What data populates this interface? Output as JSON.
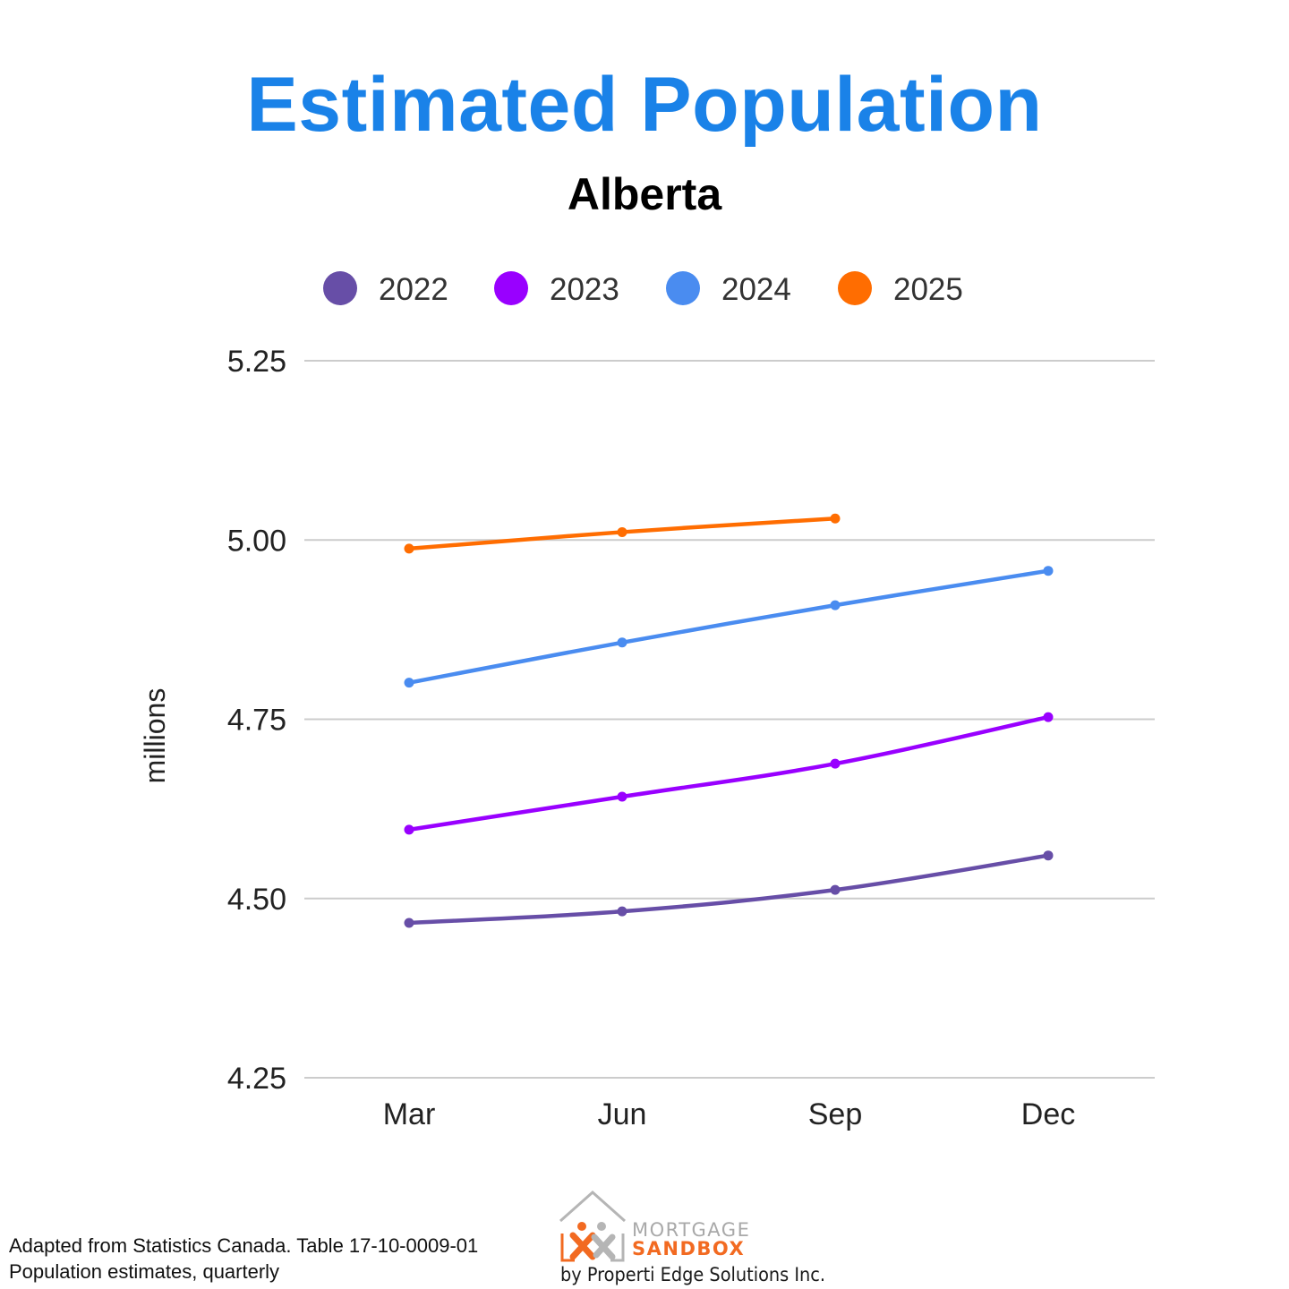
{
  "chart_data": {
    "type": "line",
    "title": "Estimated Population",
    "subtitle": "Alberta",
    "xlabel": "",
    "ylabel": "millions",
    "categories": [
      "Mar",
      "Jun",
      "Sep",
      "Dec"
    ],
    "ylim": [
      4.25,
      5.25
    ],
    "yticks": [
      "4.25",
      "4.50",
      "4.75",
      "5.00",
      "5.25"
    ],
    "grid": true,
    "legend_position": "top",
    "series": [
      {
        "name": "2022",
        "color": "#674ea7",
        "values": [
          4.466,
          4.482,
          4.512,
          4.56
        ]
      },
      {
        "name": "2023",
        "color": "#9900ff",
        "values": [
          4.596,
          4.642,
          4.688,
          4.753
        ]
      },
      {
        "name": "2024",
        "color": "#4a8cf0",
        "values": [
          4.801,
          4.857,
          4.909,
          4.957
        ]
      },
      {
        "name": "2025",
        "color": "#ff6d01",
        "values": [
          4.988,
          5.011,
          5.03,
          null
        ]
      }
    ]
  },
  "footer": {
    "source_line1": "Adapted from Statistics Canada. Table 17-10-0009-01",
    "source_line2": "Population estimates, quarterly"
  },
  "logo": {
    "word1": "MORTGAGE",
    "word2": "SANDBOX",
    "byline": "by Properti Edge Solutions Inc."
  }
}
